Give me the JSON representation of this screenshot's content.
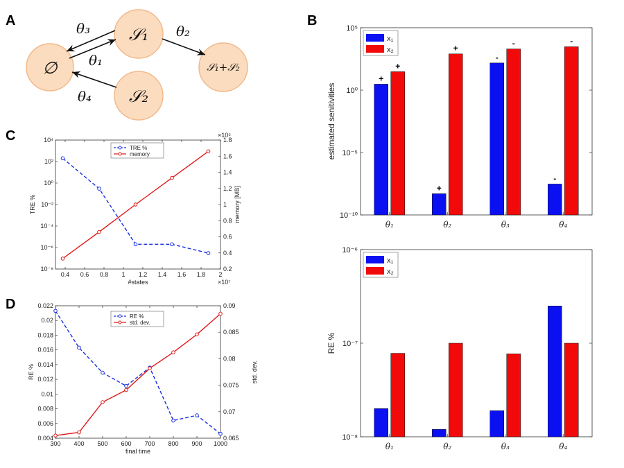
{
  "panels": {
    "A": "A",
    "B": "B",
    "C": "C",
    "D": "D"
  },
  "diagram": {
    "nodes": {
      "empty": "∅",
      "s1": "𝒮₁",
      "s2": "𝒮₂",
      "s1s2": "𝒮₁+𝒮₂"
    },
    "edges": [
      {
        "label": "θ₃",
        "from": "s1",
        "to": "empty"
      },
      {
        "label": "θ₁",
        "from": "empty",
        "to": "s1"
      },
      {
        "label": "θ₂",
        "from": "s1",
        "to": "s1s2"
      },
      {
        "label": "θ₄",
        "from": "s2",
        "to": "empty"
      }
    ],
    "node_color": "#fcdcbf",
    "node_border": "#f2b98a"
  },
  "chart_data": [
    {
      "id": "C",
      "type": "line",
      "x": [
        3750000,
        7500000,
        11250000,
        15000000,
        18750000
      ],
      "xlabel": "#states",
      "xlim": [
        3000000,
        20000000
      ],
      "x_exponent": "×10⁷",
      "x_ticks": [
        "0.4",
        "0.6",
        "0.8",
        "1",
        "1.2",
        "1.4",
        "1.6",
        "1.8",
        "2"
      ],
      "y_left": {
        "label": "TRE %",
        "scale": "log",
        "ylim_exp": [
          -8,
          4
        ],
        "ticks": [
          "10⁻⁸",
          "10⁻⁶",
          "10⁻⁴",
          "10⁻²",
          "10⁰",
          "10²",
          "10⁴"
        ]
      },
      "y_right": {
        "label": "memory [MB]",
        "ylim": [
          0.2,
          1.8
        ],
        "exponent": "×10⁵",
        "ticks": [
          "0.2",
          "0.4",
          "0.6",
          "0.8",
          "1",
          "1.2",
          "1.4",
          "1.6",
          "1.8"
        ]
      },
      "series": [
        {
          "name": "TRE %",
          "axis": "left",
          "style": "dashed",
          "color": "#1a2fe0",
          "values": [
            200,
            0.3,
            2e-06,
            2e-06,
            3e-07
          ]
        },
        {
          "name": "memory",
          "axis": "right",
          "style": "solid",
          "color": "#e01a1a",
          "values": [
            0.33,
            0.66,
            1.0,
            1.33,
            1.66
          ]
        }
      ],
      "legend": "top-center"
    },
    {
      "id": "D",
      "type": "line",
      "x": [
        300,
        400,
        500,
        600,
        700,
        800,
        900,
        1000
      ],
      "xlabel": "final time",
      "xlim": [
        300,
        1000
      ],
      "x_ticks": [
        "300",
        "400",
        "500",
        "600",
        "700",
        "800",
        "900",
        "1000"
      ],
      "y_left": {
        "label": "RE %",
        "ylim": [
          0.004,
          0.022
        ],
        "ticks": [
          "0.004",
          "0.006",
          "0.008",
          "0.01",
          "0.012",
          "0.014",
          "0.016",
          "0.018",
          "0.02",
          "0.022"
        ]
      },
      "y_right": {
        "label": "std. dev.",
        "ylim": [
          0.065,
          0.09
        ],
        "ticks": [
          "0.065",
          "0.07",
          "0.075",
          "0.08",
          "0.085",
          "0.09"
        ]
      },
      "series": [
        {
          "name": "RE %",
          "axis": "left",
          "style": "dashed",
          "color": "#1a2fe0",
          "values": [
            0.0213,
            0.0163,
            0.0129,
            0.0111,
            0.0136,
            0.0064,
            0.0071,
            0.0046
          ]
        },
        {
          "name": "std. dev.",
          "axis": "right",
          "style": "solid",
          "color": "#e01a1a",
          "values": [
            0.0655,
            0.0661,
            0.0718,
            0.0741,
            0.0782,
            0.0812,
            0.0846,
            0.0885
          ]
        }
      ],
      "legend": "top-center"
    },
    {
      "id": "B-top",
      "type": "bar",
      "categories": [
        "θ₁",
        "θ₂",
        "θ₃",
        "θ₄"
      ],
      "ylabel": "estimated senitivities",
      "scale": "log",
      "ylim_exp": [
        -10,
        5
      ],
      "y_ticks": [
        "10⁻¹⁰",
        "10⁻⁵",
        "10⁰",
        "10⁵"
      ],
      "series": [
        {
          "name": "x₁",
          "color": "#0a10f2",
          "values": [
            3.0,
            5e-09,
            150,
            3e-08
          ],
          "signs": [
            "+",
            "+",
            "-",
            "-"
          ]
        },
        {
          "name": "x₂",
          "color": "#f20a0a",
          "values": [
            30,
            800,
            2000,
            3000
          ],
          "signs": [
            "+",
            "+",
            "-",
            "-"
          ]
        }
      ],
      "legend": "top-left"
    },
    {
      "id": "B-bottom",
      "type": "bar",
      "categories": [
        "θ₁",
        "θ₂",
        "θ₃",
        "θ₄"
      ],
      "ylabel": "RE %",
      "scale": "log",
      "ylim_exp": [
        -8,
        -6
      ],
      "y_ticks": [
        "10⁻⁸",
        "10⁻⁷",
        "10⁻⁶"
      ],
      "series": [
        {
          "name": "x₁",
          "color": "#0a10f2",
          "values": [
            2e-08,
            1.2e-08,
            1.9e-08,
            2.5e-07
          ]
        },
        {
          "name": "x₂",
          "color": "#f20a0a",
          "values": [
            7.8e-08,
            1e-07,
            7.7e-08,
            1e-07
          ]
        }
      ],
      "legend": "top-left"
    }
  ]
}
